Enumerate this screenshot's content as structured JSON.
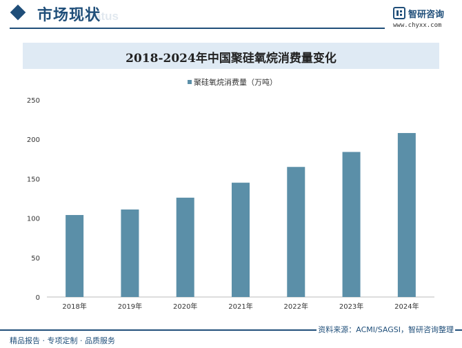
{
  "header": {
    "section_title": "市场现状",
    "section_ghost": "Status",
    "brand_name": "智研咨询",
    "brand_url": "www.chyxx.com"
  },
  "chart_data": {
    "type": "bar",
    "title": "2018-2024年中国聚硅氧烷消费量变化",
    "categories": [
      "2018年",
      "2019年",
      "2020年",
      "2021年",
      "2022年",
      "2023年",
      "2024年"
    ],
    "series": [
      {
        "name": "聚硅氧烷消费量（万吨）",
        "values": [
          104,
          111,
          126,
          145,
          165,
          184,
          208
        ],
        "color": "#5b8fa8"
      }
    ],
    "ylim": [
      0,
      250
    ],
    "yticks": [
      0,
      50,
      100,
      150,
      200,
      250
    ],
    "grid": false,
    "legend": "top-center",
    "xlabel": "",
    "ylabel": ""
  },
  "footer": {
    "left": "精品报告 · 专项定制 · 品质服务",
    "source": "资料来源：ACMI/SAGSI，智研咨询整理"
  },
  "colors": {
    "accent": "#1f4e79",
    "bar": "#5b8fa8",
    "band": "#dfeaf4"
  }
}
